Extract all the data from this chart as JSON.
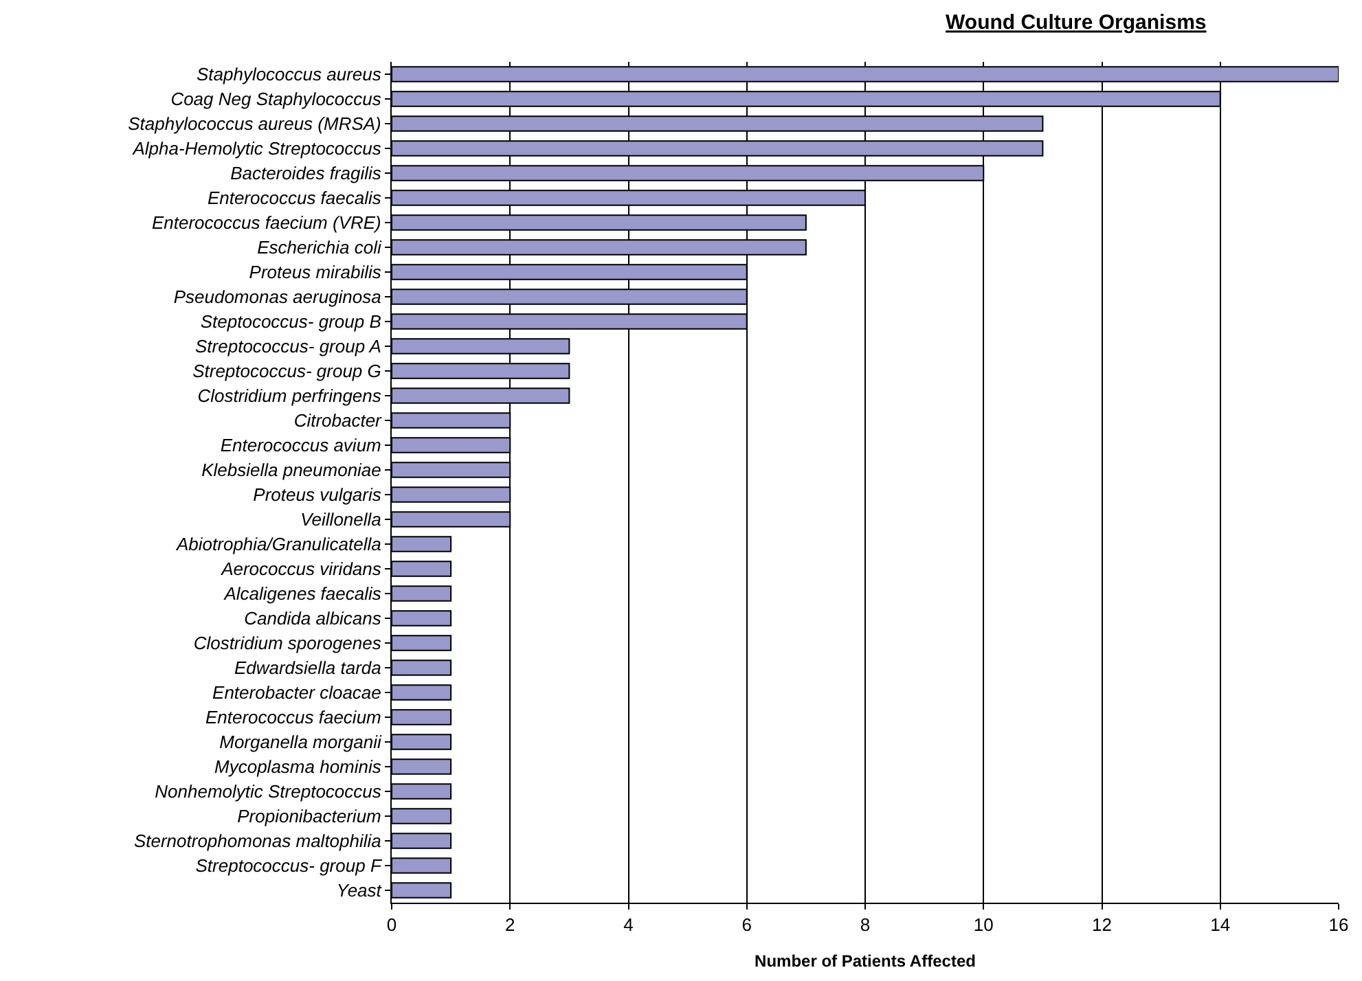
{
  "chart_data": {
    "type": "bar",
    "orientation": "horizontal",
    "title": "Wound Culture Organisms",
    "xlabel": "Number of Patients Affected",
    "categories": [
      "Staphylococcus aureus",
      "Coag Neg Staphylococcus",
      "Staphylococcus aureus (MRSA)",
      "Alpha-Hemolytic Streptococcus",
      "Bacteroides fragilis",
      "Enterococcus faecalis",
      "Enterococcus faecium (VRE)",
      "Escherichia coli",
      "Proteus mirabilis",
      "Pseudomonas aeruginosa",
      "Steptococcus- group B",
      "Streptococcus- group A",
      "Streptococcus- group G",
      "Clostridium perfringens",
      "Citrobacter",
      "Enterococcus avium",
      "Klebsiella pneumoniae",
      "Proteus vulgaris",
      "Veillonella",
      "Abiotrophia/Granulicatella",
      "Aerococcus viridans",
      "Alcaligenes faecalis",
      "Candida albicans",
      "Clostridium sporogenes",
      "Edwardsiella tarda",
      "Enterobacter cloacae",
      "Enterococcus faecium",
      "Morganella morganii",
      "Mycoplasma hominis",
      "Nonhemolytic Streptococcus",
      "Propionibacterium",
      "Sternotrophomonas maltophilia",
      "Streptococcus- group F",
      "Yeast"
    ],
    "values": [
      16,
      14,
      11,
      11,
      10,
      8,
      7,
      7,
      6,
      6,
      6,
      3,
      3,
      3,
      2,
      2,
      2,
      2,
      2,
      1,
      1,
      1,
      1,
      1,
      1,
      1,
      1,
      1,
      1,
      1,
      1,
      1,
      1,
      1
    ],
    "color": "#9999cc",
    "xlim": [
      0,
      16
    ],
    "xticks": [
      0,
      2,
      4,
      6,
      8,
      10,
      12,
      14,
      16
    ],
    "grid": "x"
  }
}
